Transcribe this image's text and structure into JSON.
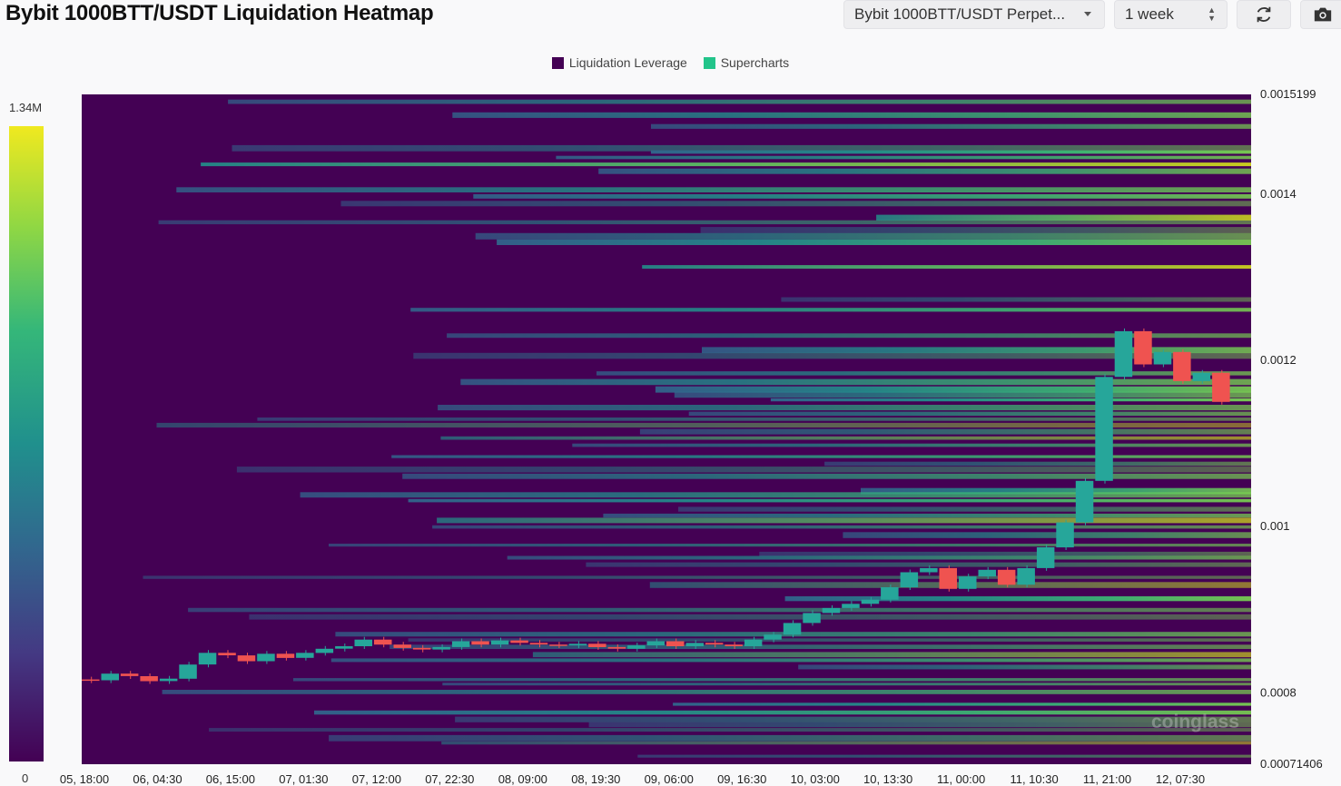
{
  "header": {
    "title": "Bybit 1000BTT/USDT Liquidation Heatmap",
    "symbol_select": "Bybit 1000BTT/USDT Perpet...",
    "range_select": "1 week"
  },
  "legend": {
    "items": [
      {
        "label": "Liquidation Leverage",
        "color": "#440154"
      },
      {
        "label": "Supercharts",
        "color": "#22c48a"
      }
    ]
  },
  "colorbar": {
    "max_label": "1.34M",
    "min_label": "0"
  },
  "watermark": "coinglass",
  "chart_data": {
    "type": "heatmap",
    "title": "Bybit 1000BTT/USDT Liquidation Heatmap",
    "y_ticks": [
      "0.0015199",
      "0.0014",
      "0.0012",
      "0.001",
      "0.0008",
      "0.00071406"
    ],
    "ylim": [
      0.00071406,
      0.0015199
    ],
    "x_ticks": [
      "05, 18:00",
      "06, 04:30",
      "06, 15:00",
      "07, 01:30",
      "07, 12:00",
      "07, 22:30",
      "08, 09:00",
      "08, 19:30",
      "09, 06:00",
      "09, 16:30",
      "10, 03:00",
      "10, 13:30",
      "11, 00:00",
      "11, 10:30",
      "11, 21:00",
      "12, 07:30"
    ],
    "color_scale": {
      "min": 0,
      "max": 1340000,
      "max_label": "1.34M"
    },
    "price_series": {
      "name": "Supercharts",
      "points": [
        [
          0,
          0.000816
        ],
        [
          3,
          0.000815
        ],
        [
          6,
          0.000823
        ],
        [
          9,
          0.00082
        ],
        [
          12,
          0.000814
        ],
        [
          15,
          0.000817
        ],
        [
          18,
          0.000834
        ],
        [
          21,
          0.000848
        ],
        [
          24,
          0.000845
        ],
        [
          27,
          0.000838
        ],
        [
          30,
          0.000847
        ],
        [
          33,
          0.000842
        ],
        [
          36,
          0.000848
        ],
        [
          39,
          0.000853
        ],
        [
          42,
          0.000856
        ],
        [
          45,
          0.000864
        ],
        [
          48,
          0.000858
        ],
        [
          51,
          0.000854
        ],
        [
          54,
          0.000852
        ],
        [
          57,
          0.000855
        ],
        [
          60,
          0.000862
        ],
        [
          63,
          0.000858
        ],
        [
          66,
          0.000863
        ],
        [
          69,
          0.00086
        ],
        [
          72,
          0.000858
        ],
        [
          75,
          0.000857
        ],
        [
          78,
          0.000859
        ],
        [
          81,
          0.000855
        ],
        [
          84,
          0.000853
        ],
        [
          87,
          0.000857
        ],
        [
          90,
          0.000862
        ],
        [
          93,
          0.000856
        ],
        [
          96,
          0.00086
        ],
        [
          99,
          0.000858
        ],
        [
          102,
          0.000856
        ],
        [
          105,
          0.000864
        ],
        [
          108,
          0.00087
        ],
        [
          111,
          0.000884
        ],
        [
          114,
          0.000896
        ],
        [
          117,
          0.000902
        ],
        [
          120,
          0.000907
        ],
        [
          123,
          0.000912
        ],
        [
          126,
          0.000927
        ],
        [
          129,
          0.000945
        ],
        [
          132,
          0.00095
        ],
        [
          135,
          0.000925
        ],
        [
          138,
          0.00094
        ],
        [
          141,
          0.000948
        ],
        [
          144,
          0.00093
        ],
        [
          147,
          0.00095
        ],
        [
          150,
          0.000975
        ],
        [
          153,
          0.001005
        ],
        [
          156,
          0.001055
        ],
        [
          159,
          0.00118
        ],
        [
          162,
          0.001235
        ],
        [
          165,
          0.001195
        ],
        [
          168,
          0.00121
        ],
        [
          171,
          0.001175
        ],
        [
          174,
          0.001185
        ],
        [
          177,
          0.00115
        ]
      ]
    }
  }
}
